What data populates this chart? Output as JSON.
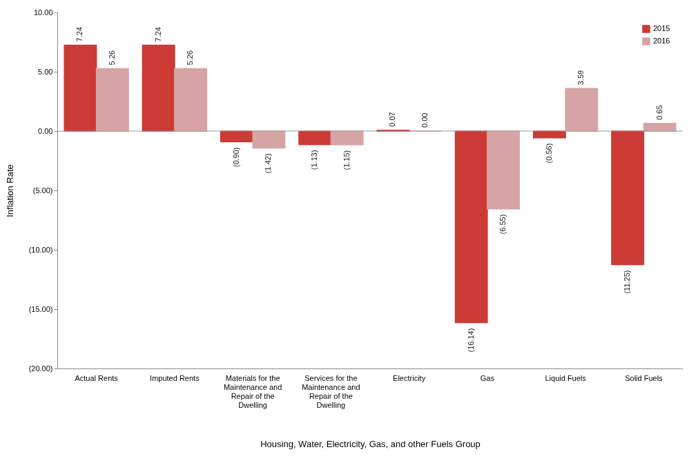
{
  "chart_data": {
    "type": "bar",
    "xlabel": "Housing, Water, Electricity, Gas, and other Fuels Group",
    "ylabel": "Inflation Rate",
    "categories": [
      "Actual Rents",
      "Imputed Rents",
      "Materials for the Maintenance and Repair of the Dwelling",
      "Services for the Maintenance and Repair of the Dwelling",
      "Electricity",
      "Gas",
      "Liquid Fuels",
      "Solid Fuels"
    ],
    "series": [
      {
        "name": "2015",
        "color": "#cc3a35",
        "values": [
          7.24,
          7.24,
          -0.9,
          -1.13,
          0.07,
          -16.14,
          -0.56,
          -11.25
        ],
        "value_labels": [
          "7.24",
          "7.24",
          "(0.90)",
          "(1.13)",
          "0.07",
          "(16.14)",
          "(0.56)",
          "(11.25)"
        ]
      },
      {
        "name": "2016",
        "color": "#d6a4a4",
        "values": [
          5.26,
          5.26,
          -1.42,
          -1.15,
          0,
          -6.55,
          3.59,
          0.65
        ],
        "value_labels": [
          "5.26",
          "5.26",
          "(1.42)",
          "(1.15)",
          "0.00",
          "(6.55)",
          "3.59",
          "0.65"
        ]
      }
    ],
    "ylim": [
      -20,
      10
    ],
    "yticks": [
      {
        "value": -20,
        "label": "(20.00)"
      },
      {
        "value": -15,
        "label": "(15.00)"
      },
      {
        "value": -10,
        "label": "(10.00)"
      },
      {
        "value": -5,
        "label": "(5.00)"
      },
      {
        "value": 0,
        "label": "0.00"
      },
      {
        "value": 5,
        "label": "5.00"
      },
      {
        "value": 10,
        "label": "10.00"
      }
    ],
    "ref_lines": [
      {
        "axis": "y",
        "value": 0
      }
    ],
    "grid": false,
    "legend": "top right"
  }
}
